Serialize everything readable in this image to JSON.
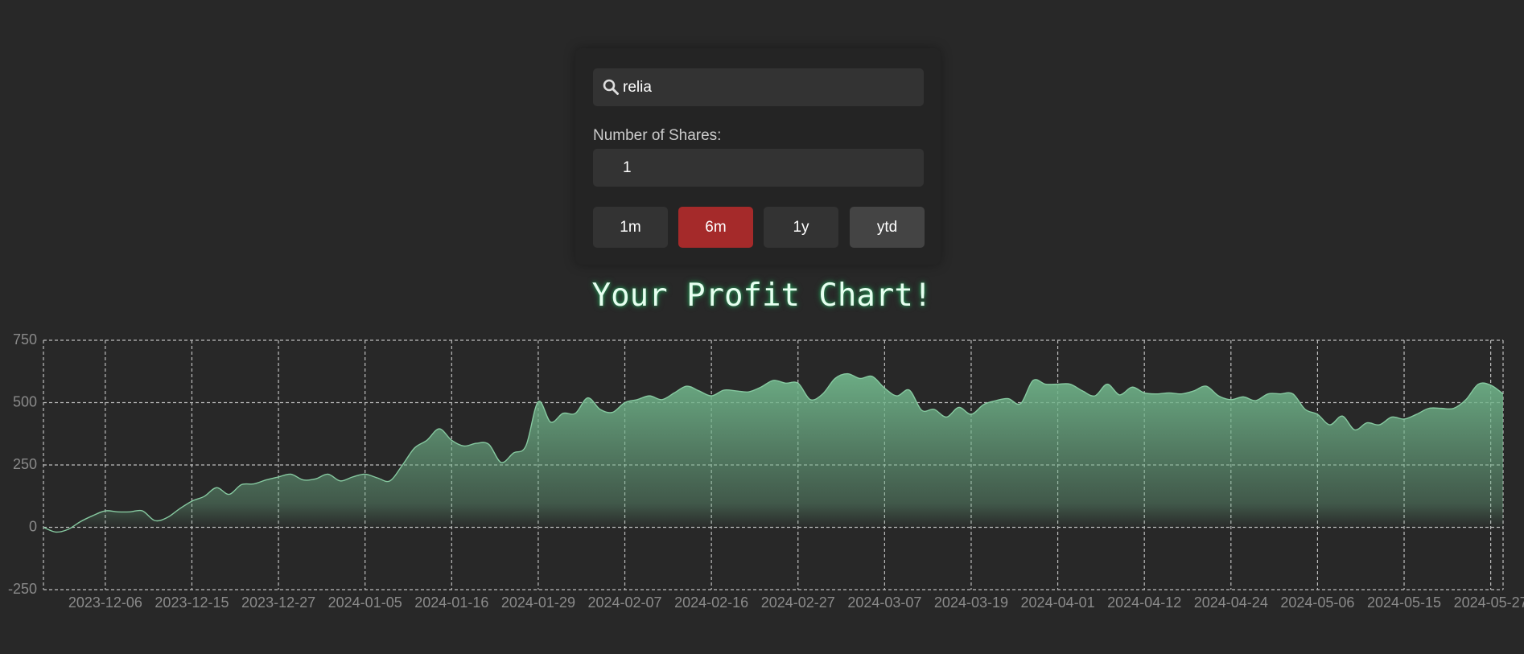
{
  "search": {
    "value": "relia"
  },
  "shares": {
    "label": "Number of Shares:",
    "value": "1"
  },
  "ranges": {
    "buttons": [
      "1m",
      "6m",
      "1y",
      "ytd"
    ],
    "active": "6m"
  },
  "chart_data": {
    "type": "area",
    "title": "Your Profit Chart!",
    "color": "#6fb389",
    "line_color": "#86c9a0",
    "grid": true,
    "ylim": [
      -250,
      750
    ],
    "yticks": [
      -250,
      0,
      250,
      500,
      750
    ],
    "categories": [
      null,
      null,
      null,
      null,
      null,
      "2023-12-06",
      null,
      null,
      null,
      null,
      null,
      null,
      "2023-12-15",
      null,
      null,
      null,
      null,
      null,
      null,
      "2023-12-27",
      null,
      null,
      null,
      null,
      null,
      null,
      "2024-01-05",
      null,
      null,
      null,
      null,
      null,
      null,
      "2024-01-16",
      null,
      null,
      null,
      null,
      null,
      null,
      "2024-01-29",
      null,
      null,
      null,
      null,
      null,
      null,
      "2024-02-07",
      null,
      null,
      null,
      null,
      null,
      null,
      "2024-02-16",
      null,
      null,
      null,
      null,
      null,
      null,
      "2024-02-27",
      null,
      null,
      null,
      null,
      null,
      null,
      "2024-03-07",
      null,
      null,
      null,
      null,
      null,
      null,
      "2024-03-19",
      null,
      null,
      null,
      null,
      null,
      null,
      "2024-04-01",
      null,
      null,
      null,
      null,
      null,
      null,
      "2024-04-12",
      null,
      null,
      null,
      null,
      null,
      null,
      "2024-04-24",
      null,
      null,
      null,
      null,
      null,
      null,
      "2024-05-06",
      null,
      null,
      null,
      null,
      null,
      null,
      "2024-05-15",
      null,
      null,
      null,
      null,
      null,
      null,
      "2024-05-27",
      null
    ],
    "values": [
      0,
      -19,
      -8,
      23,
      47,
      66,
      62,
      62,
      66,
      27,
      39,
      74,
      105,
      124,
      159,
      132,
      171,
      174,
      190,
      202,
      213,
      190,
      194,
      213,
      186,
      202,
      213,
      198,
      186,
      248,
      318,
      349,
      395,
      349,
      326,
      337,
      333,
      260,
      298,
      326,
      504,
      422,
      457,
      457,
      519,
      473,
      461,
      500,
      512,
      527,
      512,
      539,
      566,
      547,
      527,
      550,
      547,
      543,
      562,
      589,
      578,
      578,
      512,
      535,
      597,
      616,
      597,
      605,
      558,
      527,
      550,
      469,
      473,
      442,
      481,
      453,
      492,
      508,
      516,
      496,
      589,
      574,
      574,
      574,
      547,
      527,
      574,
      531,
      562,
      539,
      535,
      539,
      535,
      547,
      566,
      527,
      512,
      523,
      508,
      535,
      535,
      535,
      473,
      453,
      411,
      446,
      391,
      419,
      411,
      442,
      434,
      453,
      477,
      477,
      477,
      512,
      574,
      570,
      535
    ]
  }
}
